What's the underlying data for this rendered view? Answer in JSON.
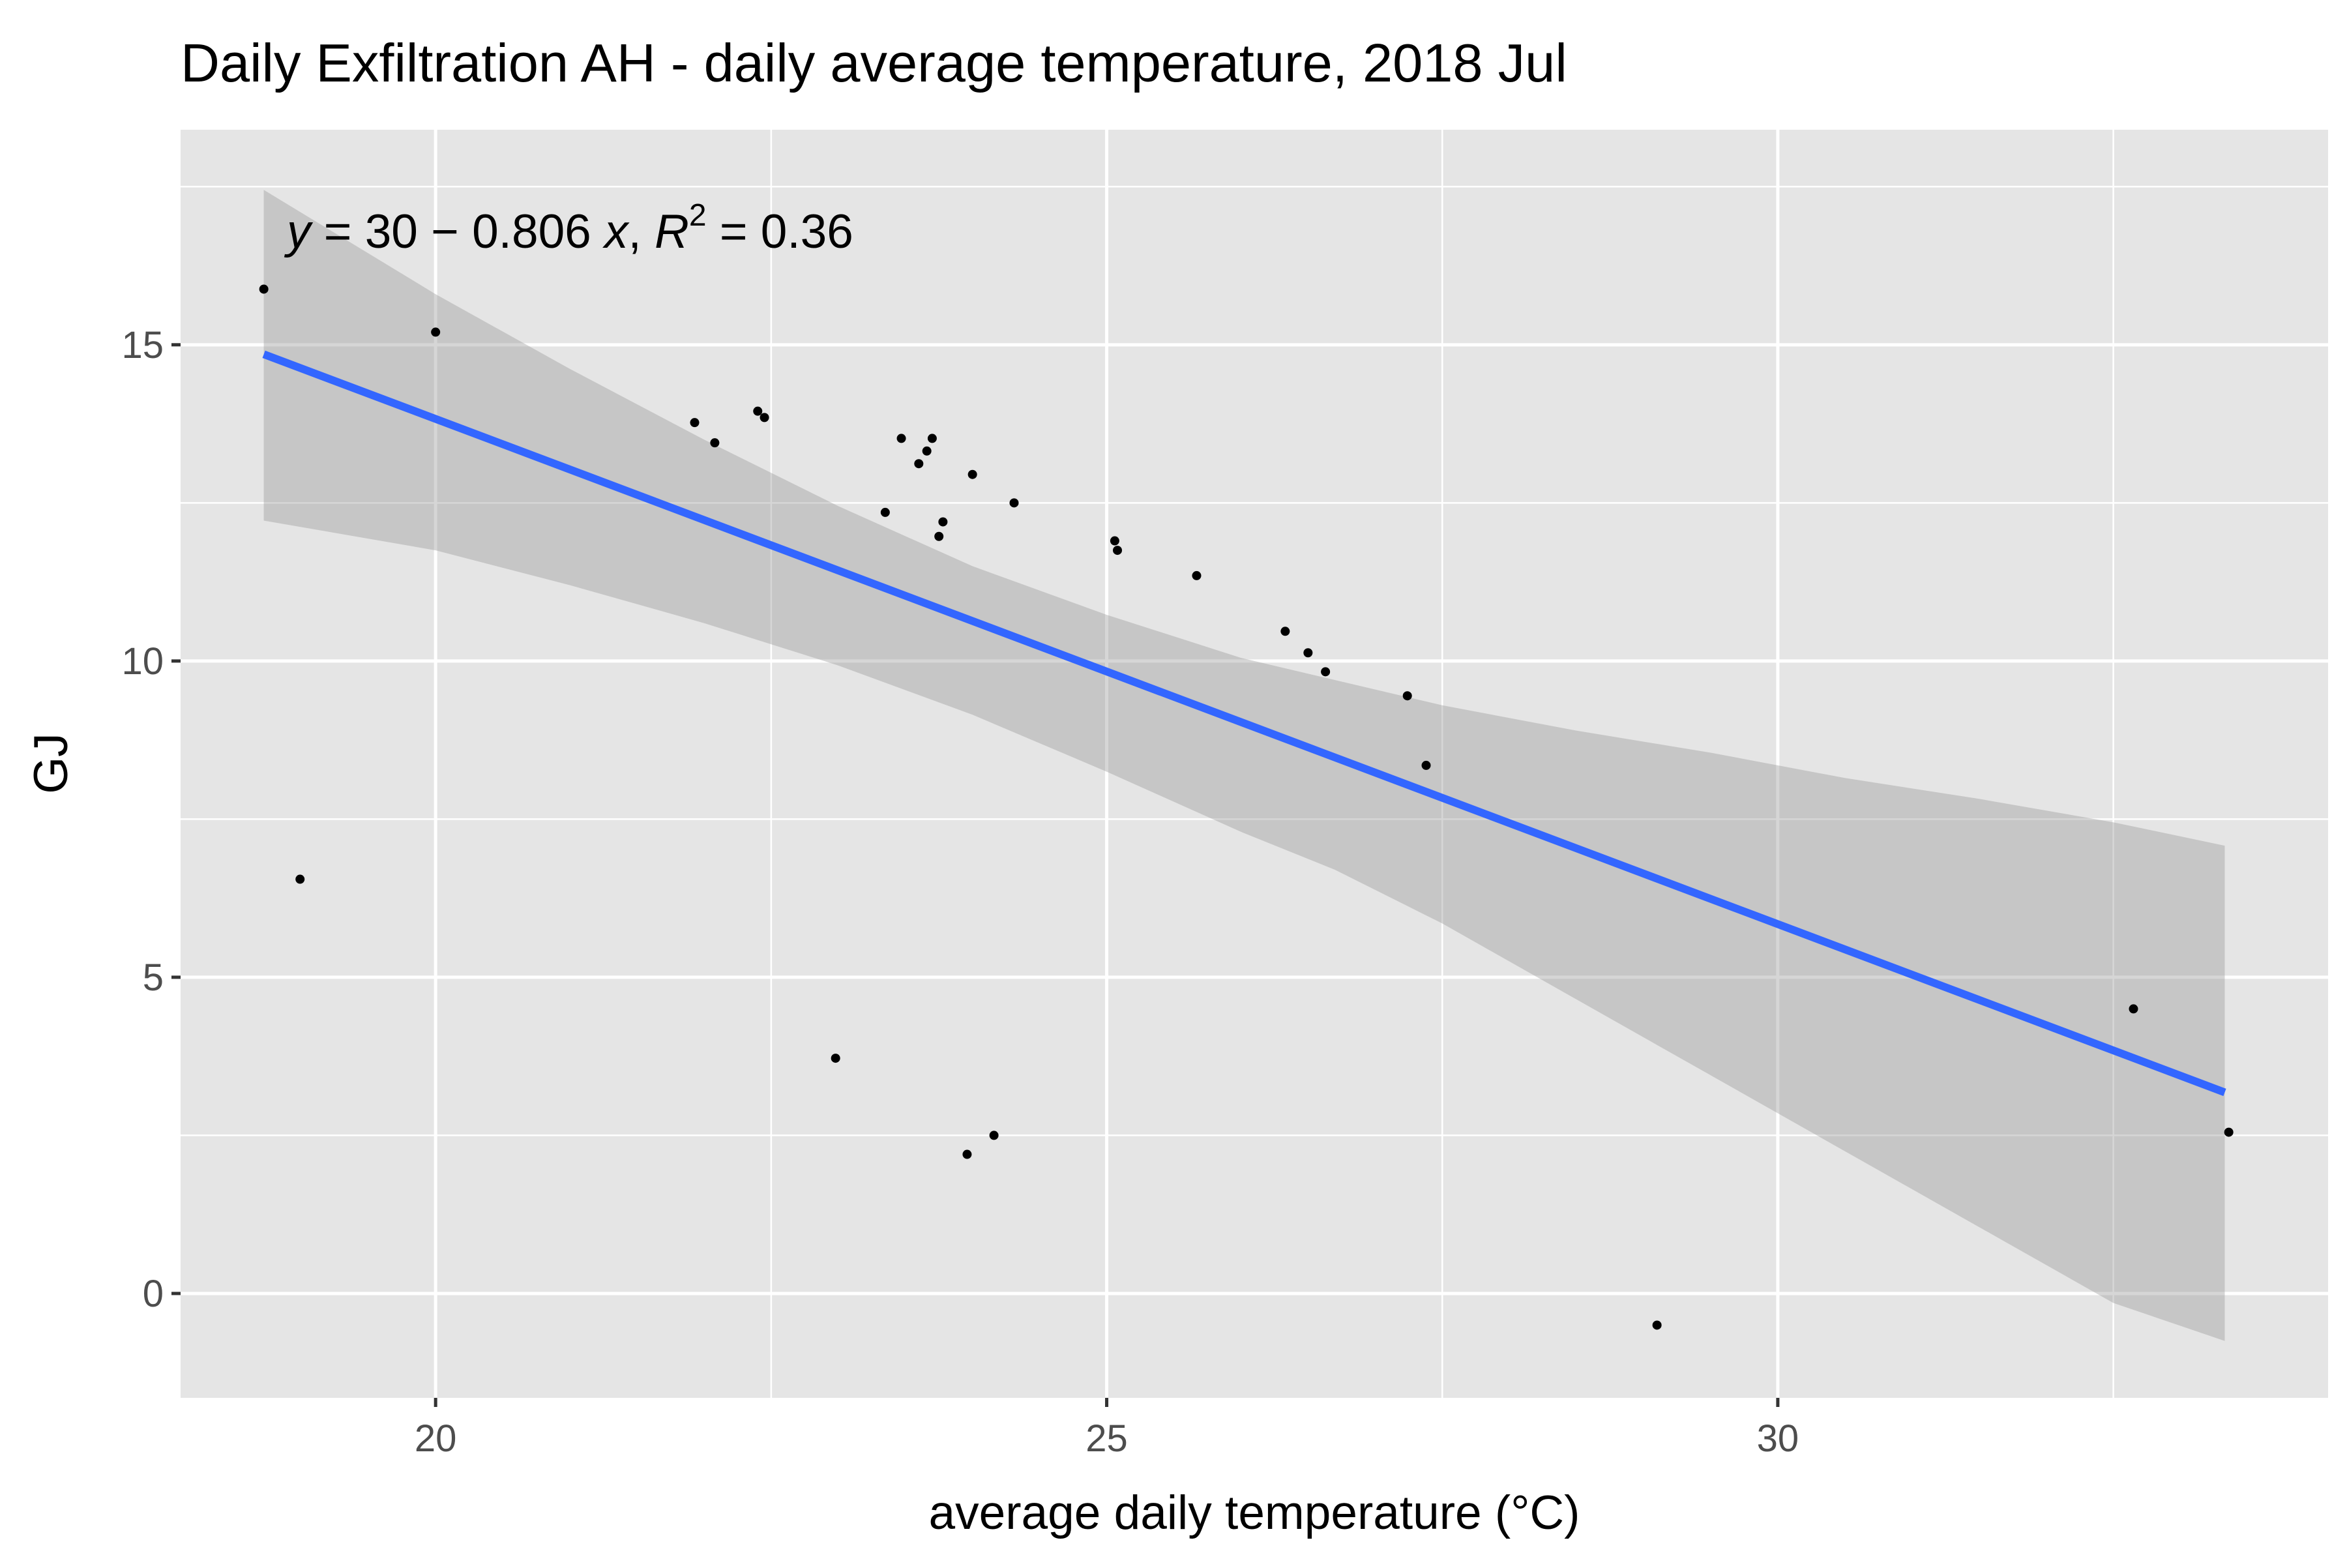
{
  "chart_data": {
    "type": "scatter",
    "title": "Daily Exfiltration AH - daily average temperature, 2018 Jul",
    "xlabel": "average daily temperature (°C)",
    "ylabel": "GJ",
    "xlim": [
      18.1,
      34.1
    ],
    "ylim": [
      -1.65,
      18.4
    ],
    "x_ticks": [
      20,
      25,
      30
    ],
    "y_ticks": [
      0,
      5,
      10,
      15
    ],
    "x_minor_ticks": [
      22.5,
      27.5,
      32.5
    ],
    "y_minor_ticks": [
      2.5,
      7.5,
      12.5,
      17.5
    ],
    "grid": true,
    "background_color": "#e5e5e5",
    "grid_color": "#ffffff",
    "point_color": "#000000",
    "line_color": "#3366ff",
    "ribbon_color": "#999999",
    "equation": {
      "y_var": "y",
      "part1": " = 30 − 0.806 ",
      "x_var": "x",
      "sep": ", ",
      "r_var": "R",
      "sup": "2",
      "part2": " = 0.36"
    },
    "points": [
      {
        "x": 18.72,
        "y": 15.88
      },
      {
        "x": 18.99,
        "y": 6.55
      },
      {
        "x": 20.0,
        "y": 15.2
      },
      {
        "x": 21.93,
        "y": 13.77
      },
      {
        "x": 22.08,
        "y": 13.45
      },
      {
        "x": 22.4,
        "y": 13.95
      },
      {
        "x": 22.45,
        "y": 13.85
      },
      {
        "x": 22.98,
        "y": 3.72
      },
      {
        "x": 23.35,
        "y": 12.35
      },
      {
        "x": 23.47,
        "y": 13.52
      },
      {
        "x": 23.6,
        "y": 13.12
      },
      {
        "x": 23.66,
        "y": 13.32
      },
      {
        "x": 23.7,
        "y": 13.52
      },
      {
        "x": 23.75,
        "y": 11.97
      },
      {
        "x": 23.78,
        "y": 12.2
      },
      {
        "x": 23.96,
        "y": 2.2
      },
      {
        "x": 24.0,
        "y": 12.95
      },
      {
        "x": 24.16,
        "y": 2.5
      },
      {
        "x": 24.31,
        "y": 12.5
      },
      {
        "x": 25.06,
        "y": 11.9
      },
      {
        "x": 25.08,
        "y": 11.75
      },
      {
        "x": 25.67,
        "y": 11.35
      },
      {
        "x": 26.33,
        "y": 10.47
      },
      {
        "x": 26.5,
        "y": 10.13
      },
      {
        "x": 26.63,
        "y": 9.83
      },
      {
        "x": 27.24,
        "y": 9.45
      },
      {
        "x": 27.38,
        "y": 8.35
      },
      {
        "x": 29.1,
        "y": -0.5
      },
      {
        "x": 32.65,
        "y": 4.5
      },
      {
        "x": 33.36,
        "y": 2.55
      }
    ],
    "fit_line": {
      "x": [
        18.72,
        33.33
      ],
      "y": [
        14.85,
        3.18
      ]
    },
    "ribbon": {
      "x": [
        18.72,
        20.0,
        21.0,
        22.0,
        23.0,
        24.0,
        25.0,
        26.0,
        26.7,
        27.5,
        28.5,
        29.5,
        30.5,
        31.5,
        32.5,
        33.33
      ],
      "upper": [
        17.45,
        15.8,
        14.62,
        13.5,
        12.45,
        11.5,
        10.73,
        10.05,
        9.7,
        9.3,
        8.9,
        8.55,
        8.15,
        7.82,
        7.45,
        7.08
      ],
      "lower": [
        12.22,
        11.75,
        11.2,
        10.6,
        9.93,
        9.15,
        8.25,
        7.3,
        6.7,
        5.85,
        4.65,
        3.45,
        2.25,
        1.05,
        -0.15,
        -0.75
      ]
    }
  }
}
